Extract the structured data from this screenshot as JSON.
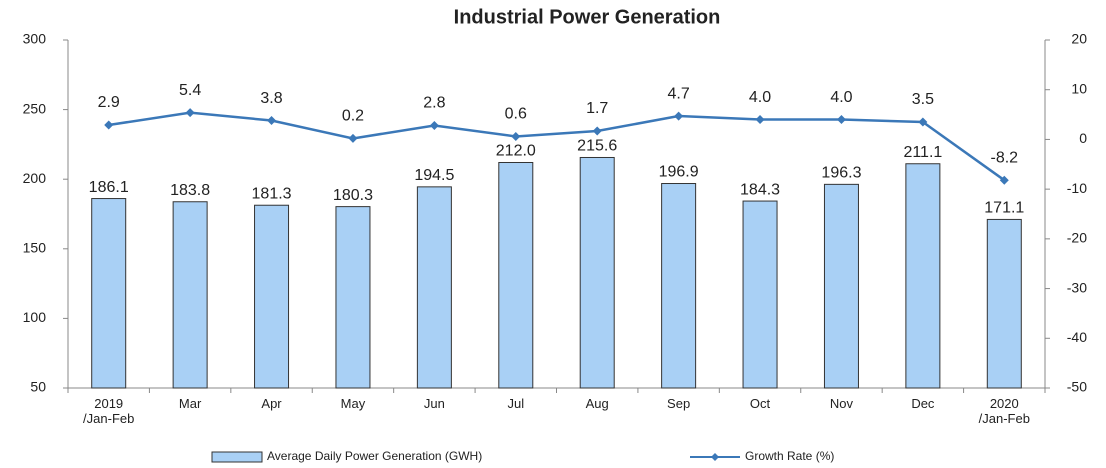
{
  "chart_data": {
    "type": "bar_line",
    "title": "Industrial Power Generation",
    "categories": [
      "2019\n/Jan-Feb",
      "Mar",
      "Apr",
      "May",
      "Jun",
      "Jul",
      "Aug",
      "Sep",
      "Oct",
      "Nov",
      "Dec",
      "2020\n/Jan-Feb"
    ],
    "series": [
      {
        "name": "Average Daily Power Generation (GWH)",
        "type": "bar",
        "color": "#a9d0f5",
        "values": [
          186.1,
          183.8,
          181.3,
          180.3,
          194.5,
          212.0,
          215.6,
          196.9,
          184.3,
          196.3,
          211.1,
          171.1
        ],
        "value_labels": [
          "186.1",
          "183.8",
          "181.3",
          "180.3",
          "194.5",
          "212.0",
          "215.6",
          "196.9",
          "184.3",
          "196.3",
          "211.1",
          "171.1"
        ]
      },
      {
        "name": "Growth Rate (%)",
        "type": "line",
        "axis": "y2",
        "color": "#3b78b8",
        "values": [
          2.9,
          5.4,
          3.8,
          0.2,
          2.8,
          0.6,
          1.7,
          4.7,
          4.0,
          4.0,
          3.5,
          -8.2
        ],
        "value_labels": [
          "2.9",
          "5.4",
          "3.8",
          "0.2",
          "2.8",
          "0.6",
          "1.7",
          "4.7",
          "4.0",
          "4.0",
          "3.5",
          "-8.2"
        ]
      }
    ],
    "ylim": [
      50,
      300
    ],
    "yticks": [
      50,
      100,
      150,
      200,
      250,
      300
    ],
    "y2lim": [
      -50,
      20
    ],
    "y2ticks": [
      -50,
      -40,
      -30,
      -20,
      -10,
      0,
      10,
      20
    ],
    "grid": false,
    "legend": "bottom"
  }
}
